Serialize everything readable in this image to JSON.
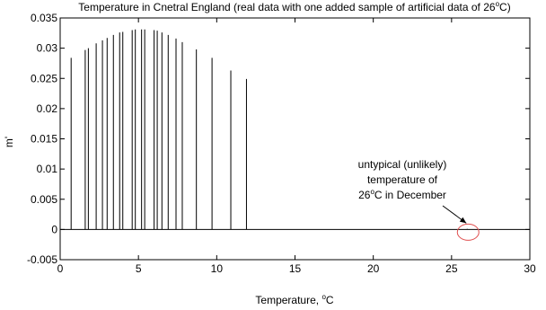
{
  "chart_data": {
    "type": "bar",
    "title_main": "Temperature in Cnetral England (real data with one added sample of artificial data of 26",
    "title_sup": "o",
    "title_end": "C)",
    "ylabel": "m'",
    "xlabel_main": "Temperature, ",
    "xlabel_sup": "o",
    "xlabel_end": "C",
    "xlim": [
      0,
      30
    ],
    "ylim": [
      -0.005,
      0.035
    ],
    "xticks": [
      0,
      5,
      10,
      15,
      20,
      25,
      30
    ],
    "xtick_labels": [
      "0",
      "5",
      "10",
      "15",
      "20",
      "25",
      "30"
    ],
    "yticks": [
      -0.005,
      0,
      0.005,
      0.01,
      0.015,
      0.02,
      0.025,
      0.03,
      0.035
    ],
    "ytick_labels": [
      "-0.005",
      "0",
      "0.005",
      "0.01",
      "0.015",
      "0.02",
      "0.025",
      "0.03",
      "0.035"
    ],
    "grid": false,
    "stems": [
      {
        "x": 0.7,
        "y": 0.0284
      },
      {
        "x": 1.6,
        "y": 0.0297
      },
      {
        "x": 1.8,
        "y": 0.03
      },
      {
        "x": 2.3,
        "y": 0.0308
      },
      {
        "x": 2.7,
        "y": 0.0313
      },
      {
        "x": 3.0,
        "y": 0.0317
      },
      {
        "x": 3.4,
        "y": 0.0322
      },
      {
        "x": 3.8,
        "y": 0.0326
      },
      {
        "x": 4.0,
        "y": 0.0327
      },
      {
        "x": 4.6,
        "y": 0.033
      },
      {
        "x": 4.8,
        "y": 0.0331
      },
      {
        "x": 5.2,
        "y": 0.0331
      },
      {
        "x": 5.4,
        "y": 0.0331
      },
      {
        "x": 6.0,
        "y": 0.033
      },
      {
        "x": 6.2,
        "y": 0.0329
      },
      {
        "x": 6.5,
        "y": 0.0326
      },
      {
        "x": 6.9,
        "y": 0.0322
      },
      {
        "x": 7.4,
        "y": 0.0316
      },
      {
        "x": 7.8,
        "y": 0.031
      },
      {
        "x": 8.7,
        "y": 0.0298
      },
      {
        "x": 9.7,
        "y": 0.0284
      },
      {
        "x": 10.9,
        "y": 0.0263
      },
      {
        "x": 11.9,
        "y": 0.0249
      },
      {
        "x": 26.0,
        "y": 0.0001
      }
    ],
    "annotation": {
      "line1": "untypical (unlikely)",
      "line2": "temperature of",
      "line3_main": "26",
      "line3_sup": "o",
      "line3_end": "C in December",
      "target_x": 26.0,
      "target_y": 0,
      "circle_color": "#e05050"
    },
    "colors": {
      "stem": "#000000",
      "axis": "#000000",
      "highlight": "#e05050"
    }
  }
}
